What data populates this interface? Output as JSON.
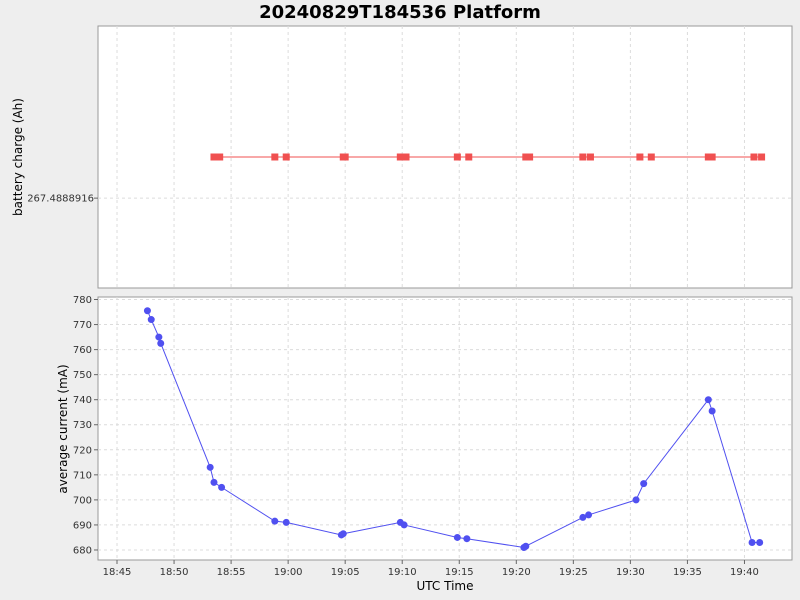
{
  "chart_data": [
    {
      "type": "line",
      "title": "20240829T184536 Platform",
      "ylabel": "battery charge (Ah)",
      "yticks": [
        "267.4888916"
      ],
      "series": [
        {
          "color": "#f05050",
          "x": [
            "18:53:30",
            "18:54:00",
            "18:58:50",
            "18:59:50",
            "19:04:50",
            "19:05:00",
            "19:09:50",
            "19:10:20",
            "19:14:50",
            "19:15:50",
            "19:20:50",
            "19:21:10",
            "19:25:50",
            "19:26:30",
            "19:30:50",
            "19:31:50",
            "19:36:50",
            "19:37:10",
            "19:40:50",
            "19:41:30"
          ],
          "y": [
            267.4889,
            267.4889,
            267.4889,
            267.4889,
            267.4889,
            267.4889,
            267.4889,
            267.4889,
            267.4889,
            267.4889,
            267.4889,
            267.4889,
            267.4889,
            267.4889,
            267.4889,
            267.4889,
            267.4889,
            267.4889,
            267.4889,
            267.4889
          ]
        }
      ]
    },
    {
      "type": "line",
      "ylabel": "average current (mA)",
      "xlabel": "UTC Time",
      "ylim": [
        676,
        781
      ],
      "yticks": [
        680,
        690,
        700,
        710,
        720,
        730,
        740,
        750,
        760,
        770,
        780
      ],
      "xlim": [
        "18:43:20",
        "19:44:10"
      ],
      "xticks": [
        "18:45",
        "18:50",
        "18:55",
        "19:00",
        "19:05",
        "19:10",
        "19:15",
        "19:20",
        "19:25",
        "19:30",
        "19:35",
        "19:40"
      ],
      "series": [
        {
          "color": "#5050f0",
          "x": [
            "18:47:40",
            "18:48:00",
            "18:48:40",
            "18:48:50",
            "18:53:10",
            "18:53:30",
            "18:54:10",
            "18:58:50",
            "18:59:50",
            "19:04:40",
            "19:04:50",
            "19:09:50",
            "19:10:10",
            "19:14:50",
            "19:15:40",
            "19:20:40",
            "19:20:50",
            "19:25:50",
            "19:26:20",
            "19:30:30",
            "19:31:10",
            "19:36:50",
            "19:37:10",
            "19:40:40",
            "19:41:20"
          ],
          "y": [
            775.5,
            772,
            765,
            762.5,
            713,
            707,
            705,
            691.5,
            691,
            686,
            686.5,
            691,
            690,
            685,
            684.5,
            681,
            681.5,
            693,
            694,
            700,
            706.5,
            740,
            735.5,
            683,
            683
          ]
        }
      ]
    }
  ]
}
